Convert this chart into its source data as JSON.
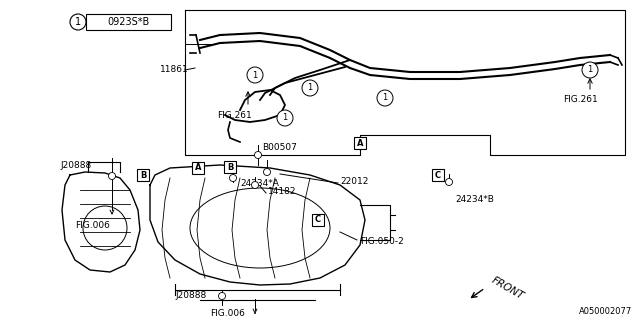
{
  "bg_color": "#ffffff",
  "line_color": "#000000",
  "fig_width": 6.4,
  "fig_height": 3.2,
  "dpi": 100,
  "part_number_box": "0923S*B",
  "diagram_number": "1",
  "footer_code": "A050002077"
}
